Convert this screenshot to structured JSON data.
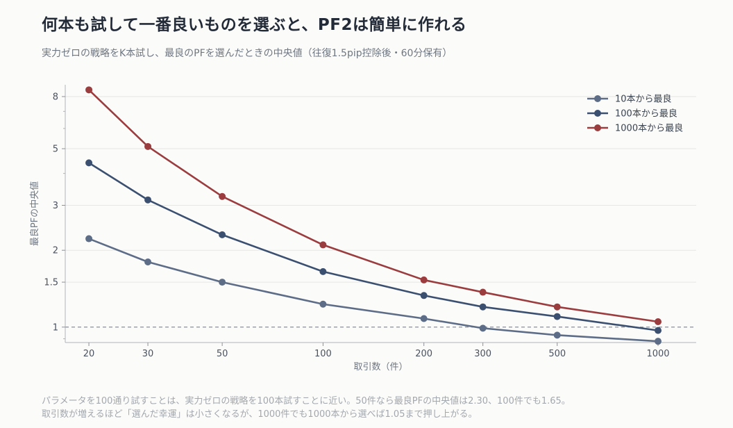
{
  "title": "何本も試して一番良いものを選ぶと、PF2は簡単に作れる",
  "subtitle": "実力ゼロの戦略をK本試し、最良のPFを選んだときの中央値（往復1.5pip控除後・60分保有）",
  "notes": [
    "パラメータを100通り試すことは、実力ゼロの戦略を100本試すことに近い。50件なら最良PFの中央値は2.30、100件でも1.65。",
    "取引数が増えるほど「選んだ幸運」は小さくなるが、1000件でも1000本から選べば1.05まで押し上がる。"
  ],
  "chart_data": {
    "type": "line",
    "x_scale": "log",
    "y_scale": "log",
    "x": [
      20,
      30,
      50,
      100,
      200,
      300,
      500,
      1000
    ],
    "x_tick_labels": [
      "20",
      "30",
      "50",
      "100",
      "200",
      "300",
      "500",
      "1000"
    ],
    "y_ticks": [
      1,
      1.5,
      2,
      3,
      5,
      8
    ],
    "y_tick_labels": [
      "1",
      "1.5",
      "2",
      "3",
      "5",
      "8"
    ],
    "xlim": [
      17,
      1300
    ],
    "ylim": [
      0.87,
      8.9
    ],
    "xlabel": "取引数（件）",
    "ylabel": "最良PFの中央値",
    "reference_line": 1,
    "legend_position": "top-right",
    "grid": "horizontal",
    "series": [
      {
        "name": "10本から最良",
        "color": "#5d6d87",
        "values": [
          2.22,
          1.8,
          1.5,
          1.23,
          1.08,
          0.99,
          0.93,
          0.88
        ]
      },
      {
        "name": "100本から最良",
        "color": "#3b5070",
        "values": [
          4.4,
          3.15,
          2.3,
          1.65,
          1.33,
          1.2,
          1.1,
          0.97
        ]
      },
      {
        "name": "1000本から最良",
        "color": "#9b3c3e",
        "values": [
          8.5,
          5.1,
          3.25,
          2.1,
          1.53,
          1.37,
          1.2,
          1.05
        ]
      }
    ]
  }
}
